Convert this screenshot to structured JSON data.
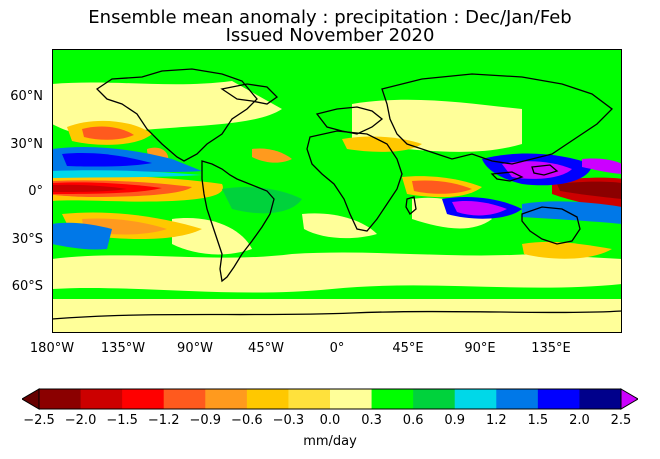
{
  "title": "Ensemble mean anomaly : precipitation : Dec/Jan/Feb",
  "subtitle": "Issued November 2020",
  "lat_ticks": [
    "60°N",
    "30°N",
    "0°",
    "30°S",
    "60°S"
  ],
  "lon_ticks": [
    "180°W",
    "135°W",
    "90°W",
    "45°W",
    "0°",
    "45°E",
    "90°E",
    "135°E"
  ],
  "colorbar": {
    "ticks": [
      "−2.5",
      "−2.0",
      "−1.5",
      "−1.2",
      "−0.9",
      "−0.6",
      "−0.3",
      "0.0",
      "0.3",
      "0.6",
      "0.9",
      "1.2",
      "1.5",
      "2.0",
      "2.5"
    ],
    "colors": [
      "#8b0000",
      "#cc0000",
      "#ff0000",
      "#ff5a1e",
      "#ff9a1e",
      "#ffc800",
      "#ffe13c",
      "#ffff99",
      "#00ff00",
      "#00d23c",
      "#00d8e8",
      "#0078e8",
      "#0000ff",
      "#00008b",
      "#000050"
    ],
    "under_color": "#660000",
    "over_color": "#cc00ff",
    "units": "mm/day"
  }
}
